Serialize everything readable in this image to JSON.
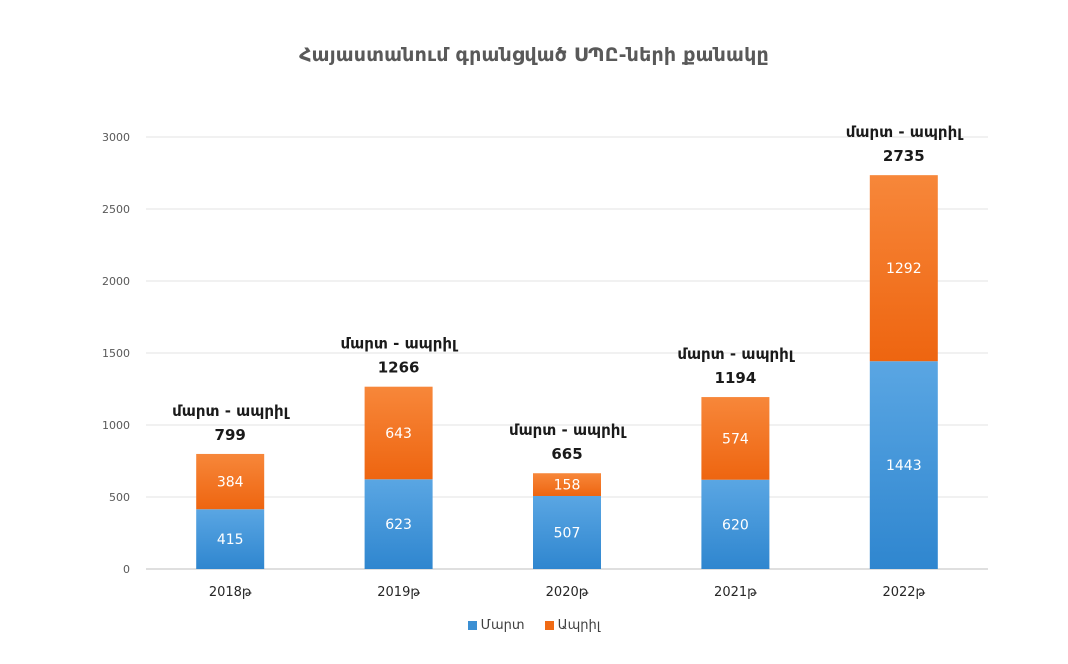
{
  "chart_data": {
    "type": "bar",
    "stacked": true,
    "title": "Հայաստանում գրանցված ՍՊԸ-ների քանակը",
    "categories": [
      "2018թ",
      "2019թ",
      "2020թ",
      "2021թ",
      "2022թ"
    ],
    "series": [
      {
        "name": "Մարտ",
        "color": "#3b8fd3",
        "values": [
          415,
          623,
          507,
          620,
          1443
        ]
      },
      {
        "name": "Ապրիլ",
        "color": "#f06a14",
        "values": [
          384,
          643,
          158,
          574,
          1292
        ]
      }
    ],
    "totals_label": "մարտ - ապրիլ",
    "totals": [
      799,
      1266,
      665,
      1194,
      2735
    ],
    "ylim": [
      0,
      3000
    ],
    "yticks": [
      0,
      500,
      1000,
      1500,
      2000,
      2500,
      3000
    ],
    "grid": true,
    "legend_position": "bottom"
  }
}
